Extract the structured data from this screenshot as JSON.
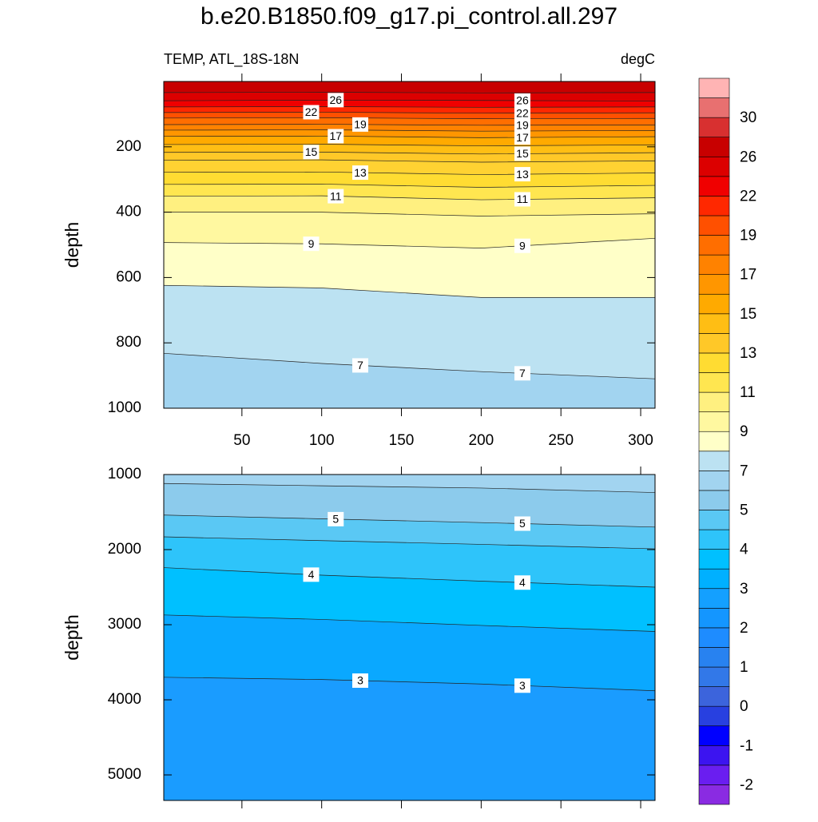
{
  "title": "b.e20.B1850.f09_g17.pi_control.all.297",
  "chart_data": [
    {
      "type": "contour",
      "left_string": "TEMP, ATL_18S-18N",
      "right_string": "degC",
      "ylabel": "depth",
      "x": [
        1,
        100,
        200,
        309
      ],
      "xlim": [
        1,
        309
      ],
      "xticks": [
        50,
        100,
        150,
        200,
        250,
        300
      ],
      "show_xtick_labels": true,
      "ylim": [
        0,
        1000
      ],
      "yticks": [
        200,
        400,
        600,
        800,
        1000
      ],
      "y_reversed": true,
      "background": "#a2d4f0",
      "contours": [
        {
          "depth": [
            34,
            33,
            35,
            34
          ],
          "fill": "#c80000"
        },
        {
          "label": 26,
          "depth": [
            59,
            57,
            58,
            60
          ],
          "fill": "#dc0000"
        },
        {
          "depth": [
            78,
            77,
            79,
            78
          ],
          "fill": "#f00000"
        },
        {
          "label": 22,
          "depth": [
            95,
            94,
            97,
            96
          ],
          "fill": "#ff2800"
        },
        {
          "depth": [
            112,
            111,
            114,
            113
          ],
          "fill": "#ff5000"
        },
        {
          "label": 19,
          "depth": [
            132,
            131,
            134,
            133
          ],
          "fill": "#ff6e00"
        },
        {
          "depth": [
            149,
            148,
            152,
            150
          ],
          "fill": "#ff8200"
        },
        {
          "label": 17,
          "depth": [
            168,
            167,
            172,
            169
          ],
          "fill": "#ff9600"
        },
        {
          "depth": [
            193,
            192,
            197,
            194
          ],
          "fill": "#ffaa00"
        },
        {
          "label": 15,
          "depth": [
            217,
            216,
            222,
            218
          ],
          "fill": "#ffbe14"
        },
        {
          "depth": [
            241,
            240,
            247,
            243
          ],
          "fill": "#ffc828"
        },
        {
          "label": 13,
          "depth": [
            278,
            277,
            285,
            280
          ],
          "fill": "#ffd232"
        },
        {
          "depth": [
            315,
            314,
            324,
            318
          ],
          "fill": "#ffdc32"
        },
        {
          "label": 11,
          "depth": [
            351,
            350,
            362,
            356
          ],
          "fill": "#ffe650"
        },
        {
          "depth": [
            400,
            400,
            412,
            405
          ],
          "fill": "#fff080"
        },
        {
          "label": 9,
          "depth": [
            493,
            497,
            510,
            480
          ],
          "fill": "#fff8a0"
        },
        {
          "depth": [
            624,
            632,
            661,
            661
          ],
          "fill": "#ffffc8"
        },
        {
          "label": 7,
          "depth": [
            832,
            863,
            888,
            910
          ],
          "fill": "#bce2f2"
        }
      ]
    },
    {
      "type": "contour",
      "ylabel": "depth",
      "x": [
        1,
        100,
        200,
        309
      ],
      "xlim": [
        1,
        309
      ],
      "xticks": [
        50,
        100,
        150,
        200,
        250,
        300
      ],
      "show_xtick_labels": false,
      "ylim": [
        1000,
        5340
      ],
      "yticks": [
        1000,
        2000,
        3000,
        4000,
        5000
      ],
      "y_reversed": true,
      "background": "#1a9cff",
      "contours": [
        {
          "depth": [
            1120,
            1150,
            1180,
            1240
          ],
          "fill": "#a2d4f0"
        },
        {
          "label": 5,
          "depth": [
            1540,
            1590,
            1640,
            1700
          ],
          "fill": "#8ccbec"
        },
        {
          "depth": [
            1830,
            1880,
            1930,
            1990
          ],
          "fill": "#5ac8f4"
        },
        {
          "label": 4,
          "depth": [
            2240,
            2340,
            2420,
            2500
          ],
          "fill": "#2ec4fa"
        },
        {
          "depth": [
            2870,
            2930,
            3010,
            3090
          ],
          "fill": "#00c0ff"
        },
        {
          "label": 3,
          "depth": [
            3700,
            3730,
            3790,
            3880
          ],
          "fill": "#0aa8ff"
        }
      ]
    }
  ],
  "colorbar": {
    "labels": [
      -2,
      -1,
      0,
      1,
      2,
      3,
      4,
      5,
      7,
      9,
      11,
      13,
      15,
      17,
      19,
      22,
      26,
      30
    ],
    "colors": [
      "#8a2be2",
      "#6a1ef0",
      "#3c14f0",
      "#0000ff",
      "#2840e0",
      "#3c64dc",
      "#3278e8",
      "#2882f0",
      "#1e8cff",
      "#1496ff",
      "#14a0ff",
      "#00b0ff",
      "#00c0ff",
      "#2ec4fa",
      "#5ac8f4",
      "#8ccbec",
      "#a2d4f0",
      "#bce2f2",
      "#ffffc8",
      "#fff8a0",
      "#fff080",
      "#ffe650",
      "#ffdc32",
      "#ffc828",
      "#ffbe14",
      "#ffaa00",
      "#ff9600",
      "#ff8200",
      "#ff6e00",
      "#ff5000",
      "#ff2800",
      "#f00000",
      "#dc0000",
      "#c80000",
      "#d83030",
      "#e87070",
      "#ffb4b4"
    ]
  }
}
